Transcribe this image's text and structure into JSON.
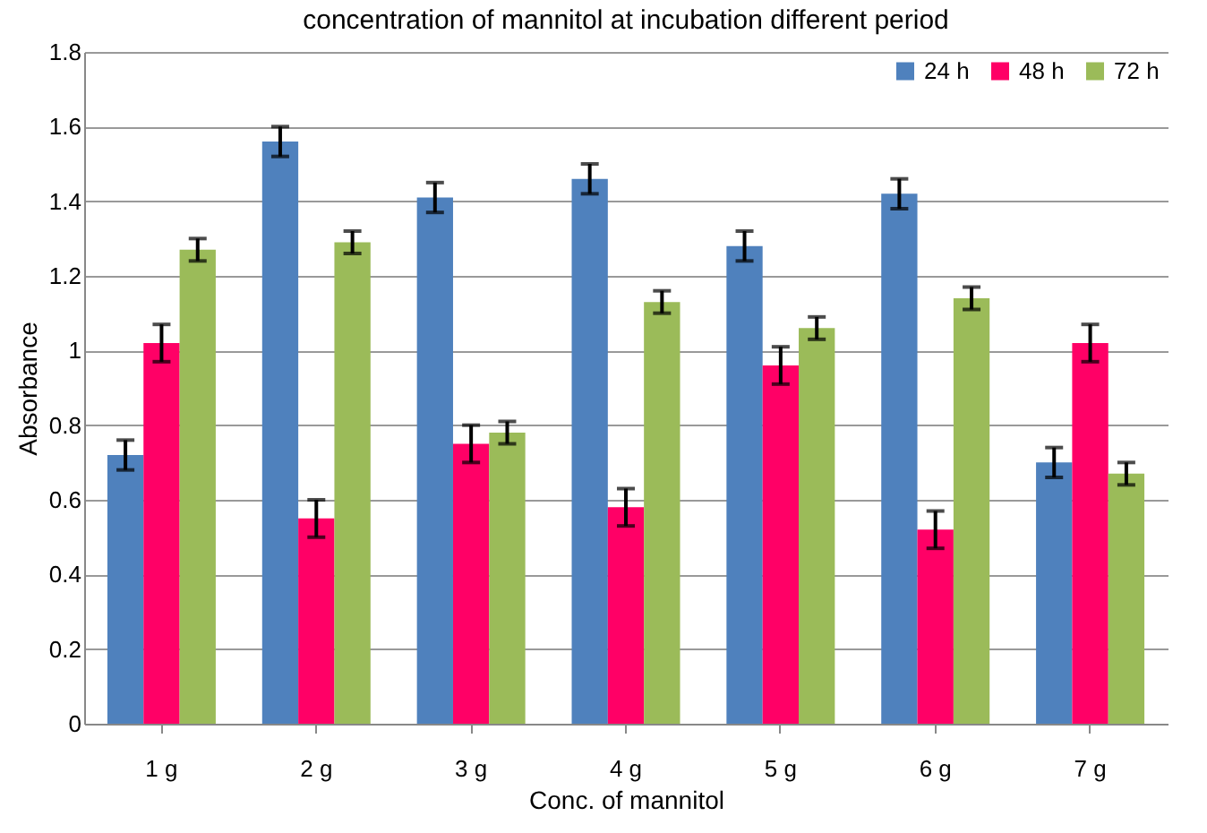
{
  "chart_data": {
    "type": "bar",
    "title": "concentration of mannitol at incubation different period",
    "xlabel": "Conc. of mannitol",
    "ylabel": "Absorbance",
    "categories": [
      "1 g",
      "2 g",
      "3 g",
      "4 g",
      "5 g",
      "6 g",
      "7 g"
    ],
    "series": [
      {
        "name": "24 h",
        "color": "#4f81bd",
        "values": [
          0.72,
          1.56,
          1.41,
          1.46,
          1.28,
          1.42,
          0.7
        ],
        "errors": [
          0.04,
          0.04,
          0.04,
          0.04,
          0.04,
          0.04,
          0.04
        ]
      },
      {
        "name": "48 h",
        "color": "#ff0066",
        "values": [
          1.02,
          0.55,
          0.75,
          0.58,
          0.96,
          0.52,
          1.02
        ],
        "errors": [
          0.05,
          0.05,
          0.05,
          0.05,
          0.05,
          0.05,
          0.05
        ]
      },
      {
        "name": "72 h",
        "color": "#9bbb59",
        "values": [
          1.27,
          1.29,
          0.78,
          1.13,
          1.06,
          1.14,
          0.67
        ],
        "errors": [
          0.03,
          0.03,
          0.03,
          0.03,
          0.03,
          0.03,
          0.03
        ]
      }
    ],
    "ylim": [
      0,
      1.8
    ],
    "yticks": [
      0,
      0.2,
      0.4,
      0.6,
      0.8,
      1,
      1.2,
      1.4,
      1.6,
      1.8
    ],
    "grid": "y",
    "legend": "top right"
  }
}
